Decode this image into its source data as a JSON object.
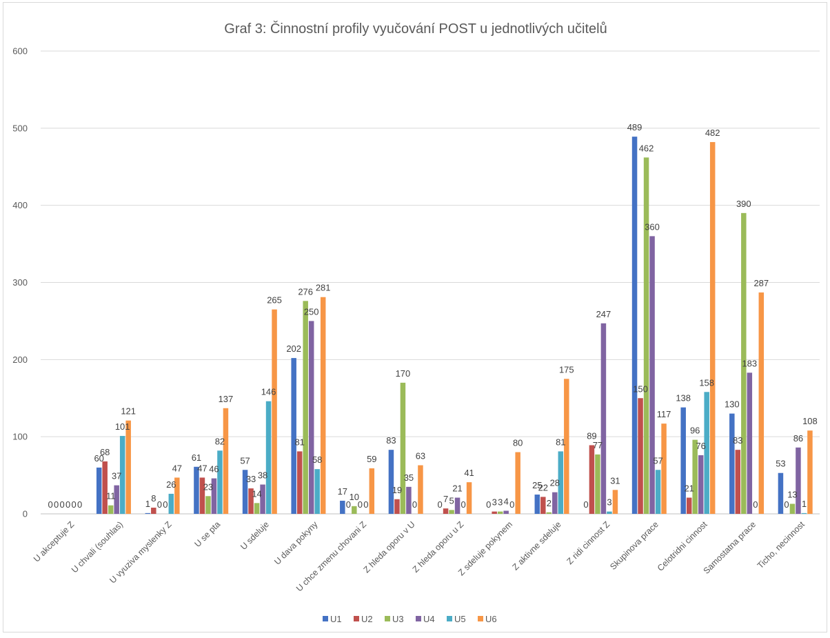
{
  "chart_data": {
    "type": "bar",
    "title": "Graf 3: Činnostní profily vyučování POST u jednotlivých učitelů",
    "xlabel": "",
    "ylabel": "",
    "ylim": [
      0,
      600
    ],
    "yticks": [
      0,
      100,
      200,
      300,
      400,
      500,
      600
    ],
    "grid": true,
    "legend_position": "bottom",
    "categories": [
      "U akceptuje Z",
      "U chvali (souhlas)",
      "U vyuziva myslenky Z",
      "U se pta",
      "U sdeluje",
      "U dava pokyny",
      "U chce zmenu chovani Z",
      "Z hleda oporu v U",
      "Z hleda oporu u Z",
      "Z sdeluje pokynem",
      "Z aktivne sdeluje",
      "Z ridi cinnost Z",
      "Skupinova prace",
      "Celotridni cinnost",
      "Samostatna prace",
      "Ticho, necinnost"
    ],
    "series": [
      {
        "name": "U1",
        "color": "#4472C4",
        "values": [
          0,
          60,
          1,
          61,
          57,
          202,
          17,
          83,
          0,
          0,
          25,
          0,
          489,
          138,
          130,
          53
        ]
      },
      {
        "name": "U2",
        "color": "#C0504D",
        "values": [
          0,
          68,
          8,
          47,
          33,
          81,
          0,
          19,
          7,
          3,
          22,
          89,
          150,
          21,
          83,
          0
        ]
      },
      {
        "name": "U3",
        "color": "#9BBB59",
        "values": [
          0,
          11,
          0,
          23,
          14,
          276,
          10,
          170,
          5,
          3,
          2,
          77,
          462,
          96,
          390,
          13
        ]
      },
      {
        "name": "U4",
        "color": "#8064A2",
        "values": [
          0,
          37,
          0,
          46,
          38,
          250,
          0,
          35,
          21,
          4,
          28,
          247,
          360,
          76,
          183,
          86
        ]
      },
      {
        "name": "U5",
        "color": "#4BACC6",
        "values": [
          0,
          101,
          26,
          82,
          146,
          58,
          0,
          0,
          0,
          0,
          81,
          3,
          57,
          158,
          0,
          1
        ]
      },
      {
        "name": "U6",
        "color": "#F79646",
        "values": [
          0,
          121,
          47,
          137,
          265,
          281,
          59,
          63,
          41,
          80,
          175,
          31,
          117,
          482,
          287,
          108
        ]
      }
    ]
  }
}
